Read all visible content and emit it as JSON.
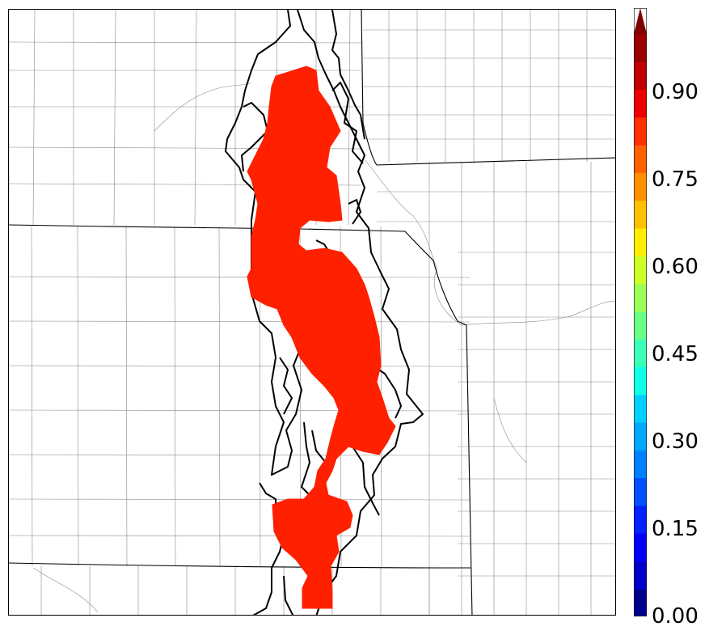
{
  "colorbar": {
    "tick_labels": [
      "0.00",
      "0.15",
      "0.30",
      "0.45",
      "0.60",
      "0.75",
      "0.90"
    ],
    "tick_values": [
      0.0,
      0.15,
      0.3,
      0.45,
      0.6,
      0.75,
      0.9
    ],
    "min": 0.0,
    "max": 1.0,
    "extend": "max",
    "colormap": "jet",
    "colors": [
      "#00008f",
      "#0000c8",
      "#0000ff",
      "#0020ff",
      "#0050ff",
      "#0080ff",
      "#00a8ff",
      "#00d0ff",
      "#10ffe8",
      "#3cffb8",
      "#6cff88",
      "#9cff58",
      "#ccff28",
      "#ffee00",
      "#ffc000",
      "#ff9000",
      "#ff6000",
      "#ff3000",
      "#ee0000",
      "#c00000",
      "#9a0000"
    ],
    "extend_color": "#800000"
  },
  "map": {
    "fill_color": "#ff2000",
    "fill_value": 0.92,
    "outline_color": "#000000",
    "boundary_color": "#000000",
    "county_color": "#8a8a8a"
  }
}
